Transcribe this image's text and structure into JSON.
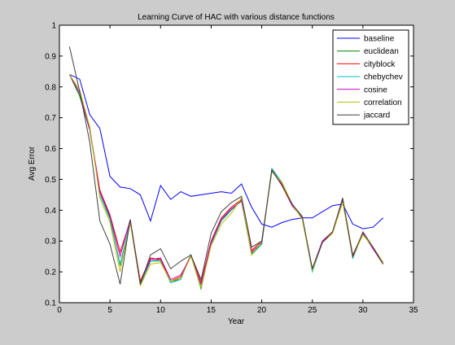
{
  "chart_data": {
    "type": "line",
    "title": "Learning Curve of HAC with various distance functions",
    "xlabel": "Year",
    "ylabel": "Avg Error",
    "xlim": [
      0,
      35
    ],
    "ylim": [
      0.1,
      1.0
    ],
    "xticks": [
      0,
      5,
      10,
      15,
      20,
      25,
      30,
      35
    ],
    "yticks": [
      0.1,
      0.2,
      0.3,
      0.4,
      0.5,
      0.6,
      0.7,
      0.8,
      0.9,
      1.0
    ],
    "xtick_labels": [
      "0",
      "5",
      "10",
      "15",
      "20",
      "25",
      "30",
      "35"
    ],
    "ytick_labels": [
      "0.1",
      "0.2",
      "0.3",
      "0.4",
      "0.5",
      "0.6",
      "0.7",
      "0.8",
      "0.9",
      "1"
    ],
    "grid": false,
    "legend_position": "top-right",
    "x": [
      1,
      2,
      3,
      4,
      5,
      6,
      7,
      8,
      9,
      10,
      11,
      12,
      13,
      14,
      15,
      16,
      17,
      18,
      19,
      20,
      21,
      22,
      23,
      24,
      25,
      26,
      27,
      28,
      29,
      30,
      31,
      32
    ],
    "series": [
      {
        "name": "baseline",
        "color": "#0000ff",
        "values": [
          0.84,
          0.825,
          0.71,
          0.665,
          0.51,
          0.475,
          0.47,
          0.45,
          0.365,
          0.48,
          0.435,
          0.46,
          0.445,
          0.45,
          0.455,
          0.46,
          0.455,
          0.485,
          0.41,
          0.355,
          0.345,
          0.36,
          0.37,
          0.375,
          0.375,
          0.395,
          0.415,
          0.42,
          0.355,
          0.34,
          0.345,
          0.375
        ]
      },
      {
        "name": "euclidean",
        "color": "#008000",
        "values": [
          0.84,
          0.77,
          0.66,
          0.46,
          0.375,
          0.22,
          0.365,
          0.16,
          0.235,
          0.24,
          0.165,
          0.18,
          0.255,
          0.145,
          0.29,
          0.37,
          0.4,
          0.435,
          0.26,
          0.29,
          0.535,
          0.49,
          0.42,
          0.375,
          0.205,
          0.295,
          0.33,
          0.43,
          0.245,
          0.325,
          0.28,
          0.23
        ]
      },
      {
        "name": "cityblock",
        "color": "#ff0000",
        "values": [
          0.84,
          0.78,
          0.665,
          0.465,
          0.385,
          0.265,
          0.365,
          0.17,
          0.245,
          0.24,
          0.17,
          0.185,
          0.255,
          0.165,
          0.3,
          0.375,
          0.41,
          0.435,
          0.27,
          0.3,
          0.53,
          0.48,
          0.415,
          0.375,
          0.21,
          0.3,
          0.33,
          0.435,
          0.255,
          0.325,
          0.275,
          0.225
        ]
      },
      {
        "name": "chebychev",
        "color": "#00bfbf",
        "values": [
          0.84,
          0.78,
          0.67,
          0.45,
          0.37,
          0.225,
          0.36,
          0.16,
          0.235,
          0.235,
          0.165,
          0.175,
          0.255,
          0.15,
          0.29,
          0.365,
          0.4,
          0.43,
          0.255,
          0.29,
          0.535,
          0.49,
          0.42,
          0.375,
          0.2,
          0.295,
          0.33,
          0.43,
          0.245,
          0.325,
          0.28,
          0.23
        ]
      },
      {
        "name": "cosine",
        "color": "#bf00bf",
        "values": [
          0.84,
          0.78,
          0.66,
          0.46,
          0.38,
          0.25,
          0.37,
          0.165,
          0.24,
          0.245,
          0.175,
          0.19,
          0.25,
          0.16,
          0.295,
          0.37,
          0.405,
          0.43,
          0.265,
          0.295,
          0.53,
          0.485,
          0.415,
          0.375,
          0.21,
          0.3,
          0.33,
          0.435,
          0.25,
          0.325,
          0.275,
          0.225
        ]
      },
      {
        "name": "correlation",
        "color": "#bfbf00",
        "values": [
          0.84,
          0.79,
          0.67,
          0.44,
          0.36,
          0.2,
          0.36,
          0.155,
          0.225,
          0.23,
          0.17,
          0.18,
          0.25,
          0.15,
          0.285,
          0.355,
          0.39,
          0.44,
          0.255,
          0.3,
          0.525,
          0.49,
          0.42,
          0.37,
          0.205,
          0.295,
          0.325,
          0.425,
          0.25,
          0.32,
          0.28,
          0.23
        ]
      },
      {
        "name": "jaccard",
        "color": "#404040",
        "values": [
          0.93,
          0.785,
          0.62,
          0.365,
          0.29,
          0.16,
          0.37,
          0.16,
          0.255,
          0.275,
          0.21,
          0.235,
          0.255,
          0.175,
          0.325,
          0.395,
          0.425,
          0.445,
          0.28,
          0.3,
          0.53,
          0.48,
          0.42,
          0.38,
          0.21,
          0.295,
          0.33,
          0.44,
          0.25,
          0.33,
          0.28,
          0.225
        ]
      }
    ]
  }
}
